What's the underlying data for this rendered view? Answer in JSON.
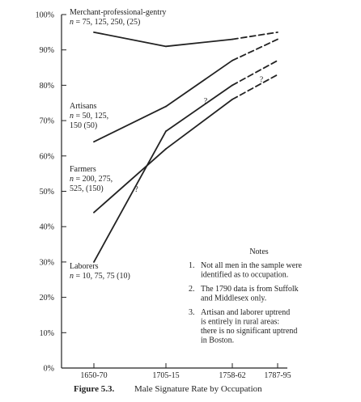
{
  "chart_data": {
    "type": "line",
    "caption": "Male Signature Rate by Occupation",
    "figure_label": "Figure 5.3.",
    "categories": [
      "1650-70",
      "1705-15",
      "1758-62",
      "1787-95"
    ],
    "y_ticks": [
      "0%",
      "10%",
      "20%",
      "30%",
      "40%",
      "50%",
      "60%",
      "70%",
      "80%",
      "90%",
      "100%"
    ],
    "ylim": [
      0,
      100
    ],
    "ylabel": "",
    "xlabel": "",
    "grid": false,
    "series": [
      {
        "label_lines": [
          "Merchant-professional-gentry",
          "n = 75, 125, 250, (25)"
        ],
        "values": [
          95,
          91,
          93,
          95
        ],
        "dashed_from_index": 2,
        "question_marks": []
      },
      {
        "label_lines": [
          "Artisans",
          "n = 50, 125,",
          "150 (50)"
        ],
        "values": [
          64,
          74,
          87,
          93
        ],
        "dashed_from_index": 2,
        "question_marks": []
      },
      {
        "label_lines": [
          "Farmers",
          "n = 200, 275,",
          "525, (150)"
        ],
        "values": [
          44,
          62,
          76,
          83
        ],
        "dashed_from_index": 2,
        "question_marks": [
          2
        ]
      },
      {
        "label_lines": [
          "Laborers",
          "n = 10, 75, 75 (10)"
        ],
        "values": [
          30,
          67,
          80,
          87
        ],
        "dashed_from_index": 2,
        "question_marks": [
          0,
          1
        ]
      }
    ],
    "question_mark_text": "?",
    "notes": {
      "title": "Notes",
      "items": [
        {
          "num": "1.",
          "lines": [
            "Not all men in the sample were",
            "identified as to occupation."
          ]
        },
        {
          "num": "2.",
          "lines": [
            "The 1790 data is from Suffolk",
            "and Middlesex only."
          ]
        },
        {
          "num": "3.",
          "lines": [
            "Artisan and laborer uptrend",
            "is entirely in rural areas:",
            "there is no significant uptrend",
            "in Boston."
          ]
        }
      ]
    }
  }
}
